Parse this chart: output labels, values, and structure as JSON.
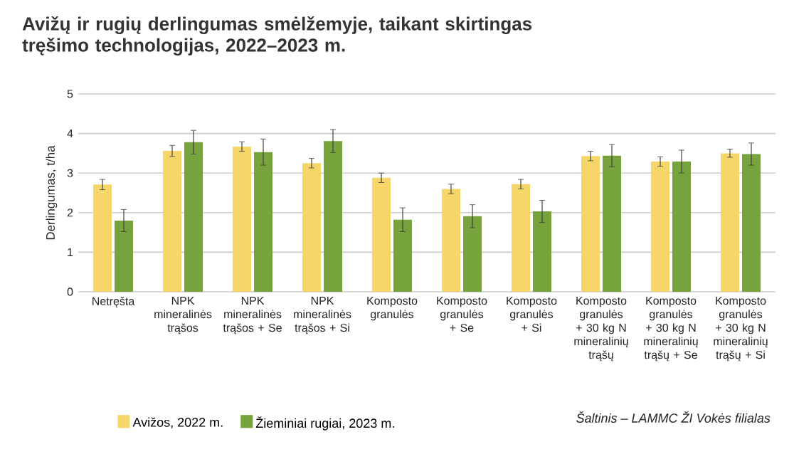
{
  "chart_data": {
    "type": "bar",
    "title": "Avižų ir rugių derlingumas smėlžemyje, taikant skirtingas tręšimo technologijas, 2022–2023 m.",
    "ylabel": "Derlingumas, t/ha",
    "categories": [
      "Netręšta",
      "NPK mineralinės trąšos",
      "NPK mineralinės trąšos + Se",
      "NPK mineralinės trąšos + Si",
      "Komposto granulės",
      "Komposto granulės + Se",
      "Komposto granulės + Si",
      "Komposto granulės + 30 kg N mineralinių trąšų",
      "Komposto granulės + 30 kg N mineralinių trąšų + Se",
      "Komposto granulės + 30 kg N mineralinių trąšų + Si"
    ],
    "series": [
      {
        "name": "Avižos, 2022 m.",
        "color": "#f7d669",
        "values": [
          2.71,
          3.56,
          3.67,
          3.25,
          2.88,
          2.6,
          2.72,
          3.43,
          3.29,
          3.5
        ],
        "errors": [
          0.13,
          0.14,
          0.12,
          0.12,
          0.12,
          0.12,
          0.12,
          0.12,
          0.12,
          0.1
        ]
      },
      {
        "name": "Žieminiai rugiai, 2023 m.",
        "color": "#77a33c",
        "values": [
          1.8,
          3.78,
          3.53,
          3.81,
          1.82,
          1.91,
          2.03,
          3.44,
          3.29,
          3.48
        ],
        "errors": [
          0.28,
          0.3,
          0.33,
          0.29,
          0.3,
          0.29,
          0.28,
          0.28,
          0.29,
          0.28
        ]
      }
    ],
    "ylim": [
      0,
      5
    ],
    "yticks": [
      0,
      1,
      2,
      3,
      4,
      5
    ],
    "grid": "y",
    "legend": "bottom",
    "annotations": [
      "Šaltinis – LAMMC ŽI Vokės filialas"
    ]
  }
}
